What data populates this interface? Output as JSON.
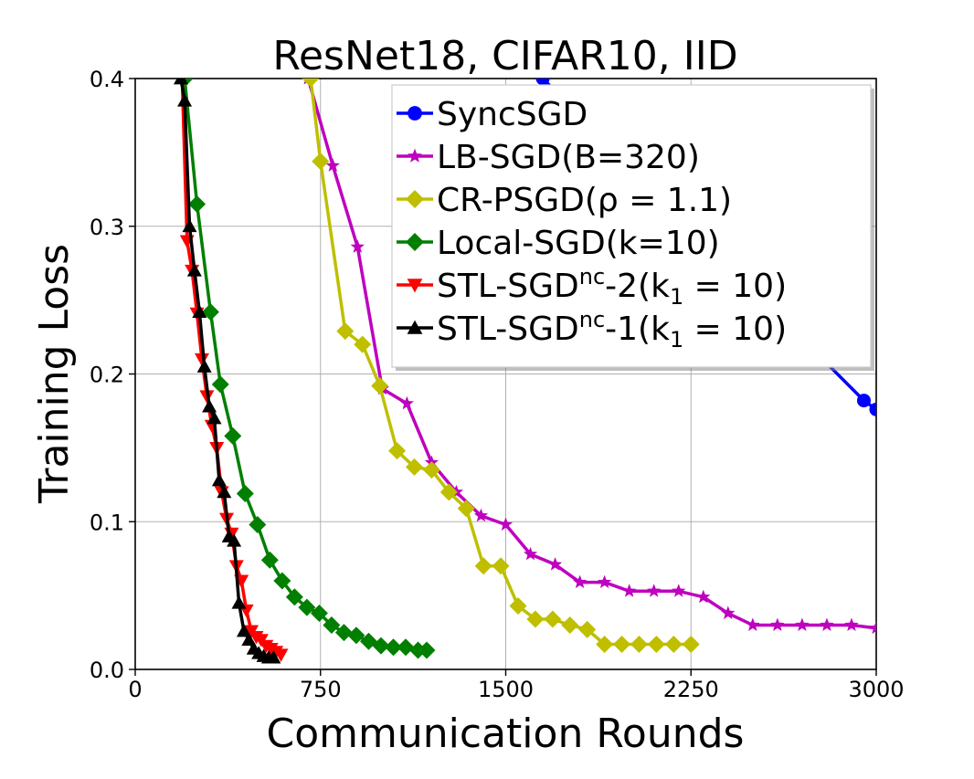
{
  "chart_data": {
    "type": "line",
    "title": "ResNet18, CIFAR10, IID",
    "xlabel": "Communication Rounds",
    "ylabel": "Training Loss",
    "xlim": [
      0,
      3000
    ],
    "ylim": [
      0,
      0.4
    ],
    "xticks": [
      0,
      750,
      1500,
      2250,
      3000
    ],
    "xtick_labels": [
      "0",
      "750",
      "1500",
      "2250",
      "3000"
    ],
    "yticks": [
      0.0,
      0.1,
      0.2,
      0.3,
      0.4
    ],
    "ytick_labels": [
      "0.0",
      "0.1",
      "0.2",
      "0.3",
      "0.4"
    ],
    "grid": true,
    "legend_position": "top-right",
    "series": [
      {
        "name": "SyncSGD",
        "legend_main": "SyncSGD",
        "legend_sup": "",
        "legend_mid": "",
        "legend_sub": "",
        "legend_tail": "",
        "color": "#0000ff",
        "marker": "circle",
        "x": [
          1650,
          2950,
          3000
        ],
        "y": [
          0.4,
          0.182,
          0.176
        ]
      },
      {
        "name": "LB-SGD(B=320)",
        "legend_main": "LB-SGD(B=320)",
        "legend_sup": "",
        "legend_mid": "",
        "legend_sub": "",
        "legend_tail": "",
        "color": "#bf00bf",
        "marker": "star",
        "x": [
          700,
          800,
          900,
          1000,
          1100,
          1200,
          1300,
          1400,
          1500,
          1600,
          1700,
          1800,
          1900,
          2000,
          2100,
          2200,
          2300,
          2400,
          2500,
          2600,
          2700,
          2800,
          2900,
          3000
        ],
        "y": [
          0.4,
          0.341,
          0.286,
          0.19,
          0.18,
          0.14,
          0.12,
          0.104,
          0.098,
          0.078,
          0.071,
          0.059,
          0.059,
          0.053,
          0.053,
          0.053,
          0.049,
          0.038,
          0.03,
          0.03,
          0.03,
          0.03,
          0.03,
          0.028
        ]
      },
      {
        "name": "CR-PSGD(ρ = 1.1)",
        "legend_main": "CR-PSGD(ρ = 1.1)",
        "legend_sup": "",
        "legend_mid": "",
        "legend_sub": "",
        "legend_tail": "",
        "color": "#bfbf00",
        "marker": "diamond",
        "x": [
          710,
          750,
          850,
          920,
          990,
          1060,
          1130,
          1200,
          1270,
          1340,
          1410,
          1480,
          1550,
          1620,
          1690,
          1760,
          1830,
          1900,
          1970,
          2040,
          2110,
          2180,
          2250
        ],
        "y": [
          0.4,
          0.344,
          0.229,
          0.22,
          0.192,
          0.148,
          0.137,
          0.135,
          0.12,
          0.109,
          0.07,
          0.07,
          0.043,
          0.034,
          0.034,
          0.03,
          0.027,
          0.017,
          0.017,
          0.017,
          0.017,
          0.017,
          0.017
        ]
      },
      {
        "name": "Local-SGD(k=10)",
        "legend_main": "Local-SGD(k=10)",
        "legend_sup": "",
        "legend_mid": "",
        "legend_sub": "",
        "legend_tail": "",
        "color": "#007f00",
        "marker": "diamond",
        "x": [
          200,
          250,
          305,
          345,
          395,
          445,
          495,
          545,
          595,
          645,
          695,
          745,
          795,
          845,
          895,
          945,
          995,
          1045,
          1095,
          1145,
          1180
        ],
        "y": [
          0.4,
          0.315,
          0.242,
          0.193,
          0.158,
          0.119,
          0.098,
          0.074,
          0.06,
          0.049,
          0.042,
          0.038,
          0.03,
          0.025,
          0.023,
          0.019,
          0.016,
          0.015,
          0.015,
          0.013,
          0.013
        ]
      },
      {
        "name": "STL-SGDnc-2(k1 = 10)",
        "legend_main": "STL-SGD",
        "legend_sup": "nc",
        "legend_mid": "-2(k",
        "legend_sub": "1",
        "legend_tail": " = 10)",
        "color": "#ff0000",
        "marker": "triangle-down",
        "x": [
          190,
          210,
          230,
          250,
          270,
          290,
          310,
          330,
          350,
          370,
          390,
          410,
          430,
          450,
          470,
          490,
          510,
          530,
          550,
          570,
          590
        ],
        "y": [
          0.4,
          0.29,
          0.27,
          0.241,
          0.21,
          0.185,
          0.165,
          0.15,
          0.12,
          0.102,
          0.092,
          0.07,
          0.06,
          0.04,
          0.026,
          0.022,
          0.02,
          0.016,
          0.014,
          0.012,
          0.01
        ]
      },
      {
        "name": "STL-SGDnc-1(k1 = 10)",
        "legend_main": "STL-SGD",
        "legend_sup": "nc",
        "legend_mid": "-1(k",
        "legend_sub": "1",
        "legend_tail": " = 10)",
        "color": "#000000",
        "marker": "triangle-up",
        "x": [
          185,
          200,
          220,
          240,
          260,
          280,
          300,
          320,
          340,
          360,
          380,
          400,
          420,
          440,
          460,
          480,
          500,
          520,
          540,
          560
        ],
        "y": [
          0.4,
          0.385,
          0.3,
          0.27,
          0.242,
          0.205,
          0.178,
          0.17,
          0.128,
          0.12,
          0.09,
          0.087,
          0.045,
          0.026,
          0.02,
          0.014,
          0.011,
          0.009,
          0.008,
          0.008
        ]
      }
    ]
  }
}
